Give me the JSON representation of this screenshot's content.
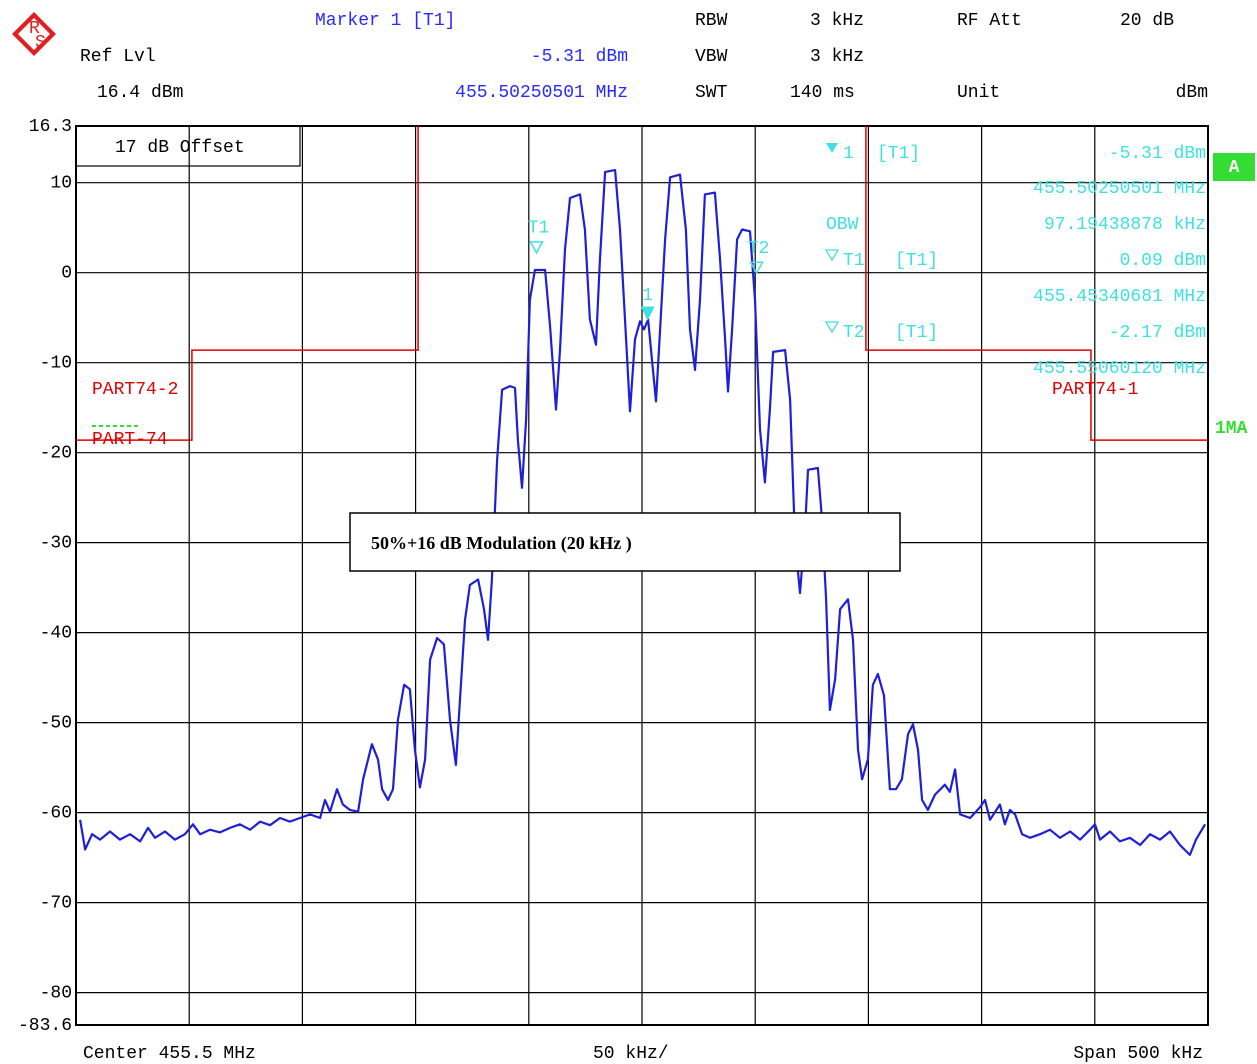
{
  "header": {
    "marker_title": "Marker 1 [T1]",
    "ref_lvl_label": "Ref Lvl",
    "ref_lvl": "16.4 dBm",
    "rbw_label": "RBW",
    "rbw": "3 kHz",
    "vbw_label": "VBW",
    "vbw": "3 kHz",
    "swt_label": "SWT",
    "swt": "140 ms",
    "rf_att_label": "RF Att",
    "rf_att": "20 dB",
    "unit_label": "Unit",
    "unit": "dBm"
  },
  "chart_data": {
    "type": "line",
    "xlim": [
      455.25,
      455.75
    ],
    "xticks": [
      455.25,
      455.3,
      455.35,
      455.4,
      455.45,
      455.5,
      455.55,
      455.6,
      455.65,
      455.7,
      455.75
    ],
    "ylim": [
      -83.6,
      16.3
    ],
    "yticks": [
      16.3,
      10,
      0,
      -10,
      -20,
      -30,
      -40,
      -50,
      -60,
      -70,
      -80,
      -83.6
    ],
    "grid": true,
    "x": [
      455.2518,
      455.254,
      455.2571,
      455.2606,
      455.265,
      455.2694,
      455.2739,
      455.2783,
      455.2818,
      455.2849,
      455.2893,
      455.2937,
      455.2981,
      455.3017,
      455.3048,
      455.3092,
      455.3136,
      455.318,
      455.3224,
      455.3269,
      455.3313,
      455.3357,
      455.3401,
      455.3445,
      455.3489,
      455.3534,
      455.3578,
      455.36,
      455.3622,
      455.3653,
      455.3679,
      455.371,
      455.3746,
      455.3768,
      455.3807,
      455.3834,
      455.3852,
      455.3878,
      455.39,
      455.3922,
      455.3949,
      455.3975,
      455.3997,
      455.4019,
      455.4042,
      455.4064,
      455.4095,
      455.4125,
      455.4152,
      455.4178,
      455.4196,
      455.4218,
      455.424,
      455.4276,
      455.4302,
      455.432,
      455.4337,
      455.436,
      455.4382,
      455.4417,
      455.4439,
      455.4452,
      455.447,
      455.4488,
      455.4505,
      455.4527,
      455.4572,
      455.4594,
      455.462,
      455.4638,
      455.466,
      455.4682,
      455.4726,
      455.4748,
      455.477,
      455.4797,
      455.4814,
      455.4837,
      455.4881,
      455.4903,
      455.4925,
      455.4947,
      455.4969,
      455.4991,
      455.5009,
      455.5027,
      455.5044,
      455.5062,
      455.508,
      455.5102,
      455.5124,
      455.5168,
      455.5194,
      455.5212,
      455.5234,
      455.5256,
      455.5278,
      455.5322,
      455.5345,
      455.5367,
      455.538,
      455.5398,
      455.542,
      455.5442,
      455.5477,
      455.5499,
      455.5521,
      455.5543,
      455.5565,
      455.5579,
      455.5632,
      455.5654,
      455.5676,
      455.5698,
      455.572,
      455.5733,
      455.5777,
      455.5795,
      455.5813,
      455.583,
      455.5853,
      455.5875,
      455.591,
      455.5932,
      455.5954,
      455.5972,
      455.5998,
      455.602,
      455.6042,
      455.6069,
      455.6095,
      455.6122,
      455.6148,
      455.6175,
      455.6197,
      455.6219,
      455.6237,
      455.6263,
      455.6294,
      455.6338,
      455.636,
      455.6383,
      455.6405,
      455.6449,
      455.6493,
      455.6515,
      455.6537,
      455.6581,
      455.6603,
      455.6625,
      455.6648,
      455.6679,
      455.6714,
      455.6758,
      455.6802,
      455.6846,
      455.6891,
      455.6935,
      455.6979,
      455.7001,
      455.7023,
      455.7067,
      455.7111,
      455.7155,
      455.72,
      455.7244,
      455.7288,
      455.7332,
      455.7376,
      455.742,
      455.7447,
      455.7487
    ],
    "series": [
      {
        "color": "#1f1fd8",
        "values": [
          -60.8,
          -64.1,
          -62.4,
          -63,
          -62.1,
          -63,
          -62.4,
          -63.2,
          -61.7,
          -62.8,
          -62.1,
          -63,
          -62.4,
          -61.3,
          -62.4,
          -61.9,
          -62.2,
          -61.7,
          -61.3,
          -61.9,
          -61,
          -61.4,
          -60.6,
          -61,
          -60.6,
          -60.2,
          -60.6,
          -58.6,
          -59.9,
          -57.4,
          -59.1,
          -59.7,
          -59.9,
          -56.3,
          -52.4,
          -54.1,
          -57.4,
          -58.6,
          -57.4,
          -49.7,
          -45.8,
          -46.3,
          -53,
          -57.2,
          -54.1,
          -43,
          -40.6,
          -41.3,
          -49.7,
          -54.7,
          -47.4,
          -38.6,
          -34.7,
          -34.1,
          -37.4,
          -40.8,
          -34.1,
          -20.8,
          -13,
          -12.6,
          -12.8,
          -18.6,
          -23.9,
          -16.3,
          -3,
          0.3,
          0.3,
          -6,
          -15.2,
          -8.6,
          2.6,
          8.3,
          8.7,
          4.8,
          -5.2,
          -8,
          1.4,
          11.2,
          11.4,
          4.8,
          -5.2,
          -15.4,
          -7.4,
          -5.4,
          -6.3,
          -5.2,
          -9.7,
          -14.3,
          -6.3,
          3.7,
          10.6,
          10.9,
          4.8,
          -6.3,
          -10.8,
          -3,
          8.7,
          8.9,
          1.4,
          -7.4,
          -13.2,
          -6.3,
          3.7,
          4.8,
          4.6,
          -3,
          -17.4,
          -23.3,
          -15.2,
          -8.8,
          -8.6,
          -14.1,
          -29.7,
          -35.6,
          -28.6,
          -21.9,
          -21.7,
          -27.4,
          -36.3,
          -48.6,
          -45.2,
          -37.4,
          -36.3,
          -40.8,
          -53,
          -56.3,
          -54.1,
          -45.8,
          -44.6,
          -47,
          -57.4,
          -57.4,
          -56.3,
          -51.3,
          -50.2,
          -53,
          -58.6,
          -59.7,
          -58,
          -56.9,
          -57.7,
          -55.2,
          -60.2,
          -60.6,
          -59.4,
          -58.6,
          -60.8,
          -59.1,
          -61.3,
          -59.7,
          -60.2,
          -62.4,
          -62.8,
          -62.4,
          -61.9,
          -62.8,
          -62.1,
          -63,
          -61.9,
          -61.3,
          -63,
          -62.1,
          -63.2,
          -62.8,
          -63.6,
          -62.4,
          -63,
          -62.1,
          -63.6,
          -64.7,
          -63,
          -61.3
        ]
      }
    ],
    "limit_color": "#e00000",
    "limit_lines": [
      {
        "name": "PART74-2",
        "x": [
          455.25,
          455.3012,
          455.3012,
          455.4011,
          455.4011
        ],
        "y": [
          -18.6,
          -18.6,
          -8.6,
          -8.6,
          16.3
        ]
      },
      {
        "name": "PART74-1",
        "x": [
          455.5989,
          455.5989,
          455.6983,
          455.6983,
          455.75
        ],
        "y": [
          16.3,
          -8.6,
          -8.6,
          -18.6,
          -18.6
        ]
      }
    ],
    "marker_color": "#40e0e0",
    "markers": [
      {
        "name": "1",
        "trace": "[T1]",
        "x": 455.50250501,
        "y": -5.31,
        "x_label": "455.50250501 MHz",
        "y_label": "-5.31 dBm"
      },
      {
        "name": "T1",
        "trace": "[T1]",
        "x": 455.45340681,
        "y": 0.09,
        "x_label": "455.45340681 MHz",
        "y_label": "0.09 dBm"
      },
      {
        "name": "T2",
        "trace": "[T1]",
        "x": 455.5506012,
        "y": -2.17,
        "x_label": "455.55060120 MHz",
        "y_label": "-2.17 dBm"
      }
    ],
    "obw_label": "OBW",
    "obw": "97.19438878 kHz",
    "offset_label": "17 dB Offset",
    "annotation": "50%+16 dB Modulation (20 kHz )",
    "display_line_label": "PART-74",
    "trace_label": "1MA",
    "screen_label": "A",
    "center": "Center 455.5 MHz",
    "division": "50 kHz/",
    "span": "Span 500 kHz"
  }
}
